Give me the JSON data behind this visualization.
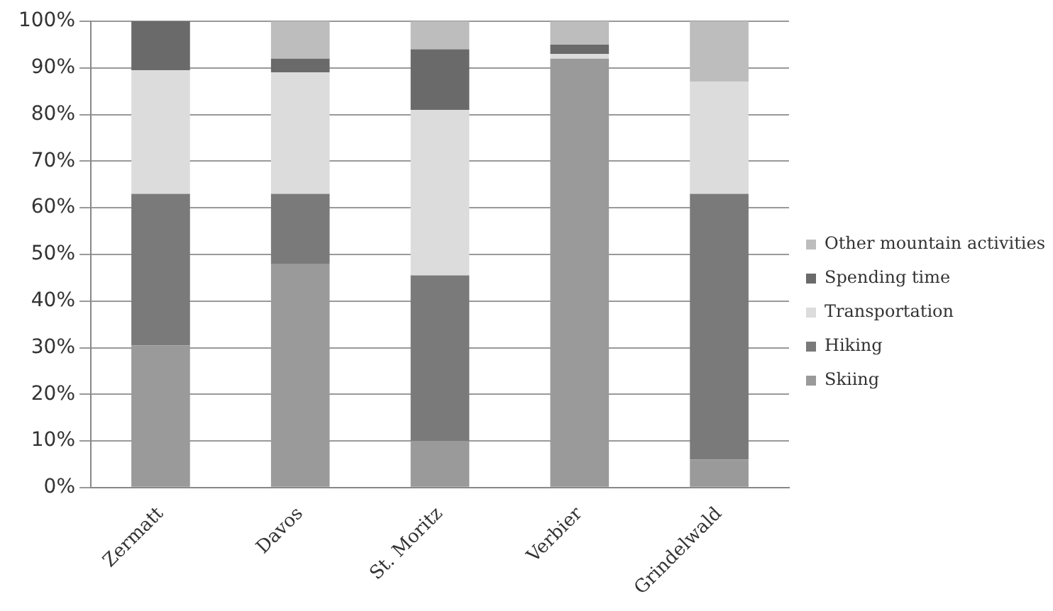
{
  "chart_data": {
    "type": "bar",
    "stacked": true,
    "categories": [
      "Zermatt",
      "Davos",
      "St. Moritz",
      "Verbier",
      "Grindelwald"
    ],
    "series": [
      {
        "name": "Skiing",
        "color": "#9a9a9a",
        "values": [
          30.5,
          48,
          10,
          92,
          6
        ]
      },
      {
        "name": "Hiking",
        "color": "#7a7a7a",
        "values": [
          32.5,
          15,
          35.5,
          0,
          57
        ]
      },
      {
        "name": "Transportation",
        "color": "#dcdcdc",
        "values": [
          26.5,
          26,
          35.5,
          1,
          24
        ]
      },
      {
        "name": "Spending time",
        "color": "#6a6a6a",
        "values": [
          10.5,
          3,
          13,
          2,
          0
        ]
      },
      {
        "name": "Other mountain activities",
        "color": "#bdbdbd",
        "values": [
          0,
          8,
          6,
          5,
          13
        ]
      }
    ],
    "ylim": [
      0,
      100
    ],
    "yticks": [
      {
        "value": 0,
        "label": "0%"
      },
      {
        "value": 10,
        "label": "10%"
      },
      {
        "value": 20,
        "label": "20%"
      },
      {
        "value": 30,
        "label": "30%"
      },
      {
        "value": 40,
        "label": "40%"
      },
      {
        "value": 50,
        "label": "50%"
      },
      {
        "value": 60,
        "label": "60%"
      },
      {
        "value": 70,
        "label": "70%"
      },
      {
        "value": 80,
        "label": "80%"
      },
      {
        "value": 90,
        "label": "90%"
      },
      {
        "value": 100,
        "label": "100%"
      }
    ],
    "grid": "y",
    "legend": "right"
  }
}
